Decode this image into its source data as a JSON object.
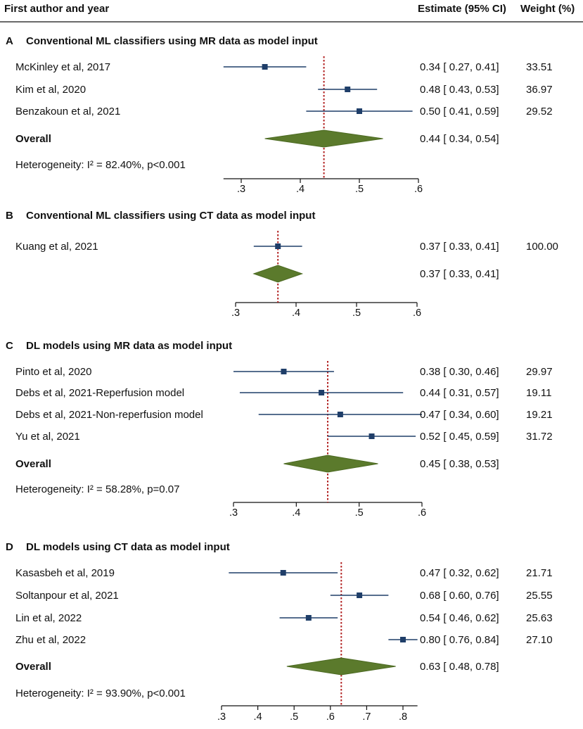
{
  "header": {
    "author_col": "First author and year",
    "estimate_col": "Estimate (95% CI)",
    "weight_col": "Weight (%)"
  },
  "colors": {
    "marker": "#1f3e69",
    "diamond": "#5b7a2c",
    "diamond_stroke": "#4c6a22",
    "null_line": "#b22222",
    "axis": "#111111"
  },
  "chart_data": [
    {
      "type": "forest",
      "letter": "A",
      "title": "Conventional ML classifiers using MR data as model input",
      "xlim": [
        0.27,
        0.6
      ],
      "ticks": [
        0.3,
        0.4,
        0.5,
        0.6
      ],
      "tick_labels": [
        ".3",
        ".4",
        ".5",
        ".6"
      ],
      "pooled_line": 0.44,
      "studies": [
        {
          "label": "McKinley et al, 2017",
          "est": 0.34,
          "lo": 0.27,
          "hi": 0.41,
          "ci_text": "0.34 [ 0.27,  0.41]",
          "weight": "33.51"
        },
        {
          "label": "Kim et al, 2020",
          "est": 0.48,
          "lo": 0.43,
          "hi": 0.53,
          "ci_text": "0.48 [ 0.43,  0.53]",
          "weight": "36.97"
        },
        {
          "label": "Benzakoun et al, 2021",
          "est": 0.5,
          "lo": 0.41,
          "hi": 0.59,
          "ci_text": "0.50 [ 0.41,  0.59]",
          "weight": "29.52"
        }
      ],
      "overall": {
        "label": "Overall",
        "est": 0.44,
        "lo": 0.34,
        "hi": 0.54,
        "ci_text": "0.44 [ 0.34,  0.54]"
      },
      "heterogeneity": "Heterogeneity: I² = 82.40%, p<0.001"
    },
    {
      "type": "forest",
      "letter": "B",
      "title": "Conventional ML classifiers using CT data as model input",
      "xlim": [
        0.3,
        0.6
      ],
      "ticks": [
        0.3,
        0.4,
        0.5,
        0.6
      ],
      "tick_labels": [
        ".3",
        ".4",
        ".5",
        ".6"
      ],
      "pooled_line": 0.37,
      "studies": [
        {
          "label": "Kuang et al, 2021",
          "est": 0.37,
          "lo": 0.33,
          "hi": 0.41,
          "ci_text": "0.37 [ 0.33,  0.41]",
          "weight": "100.00"
        }
      ],
      "overall": {
        "label": "",
        "est": 0.37,
        "lo": 0.33,
        "hi": 0.41,
        "ci_text": "0.37 [ 0.33,  0.41]"
      },
      "heterogeneity": ""
    },
    {
      "type": "forest",
      "letter": "C",
      "title": "DL models using MR data as model input",
      "xlim": [
        0.3,
        0.6
      ],
      "ticks": [
        0.3,
        0.4,
        0.5,
        0.6
      ],
      "tick_labels": [
        ".3",
        ".4",
        ".5",
        ".6"
      ],
      "pooled_line": 0.45,
      "studies": [
        {
          "label": "Pinto et al, 2020",
          "est": 0.38,
          "lo": 0.3,
          "hi": 0.46,
          "ci_text": "0.38 [ 0.30,  0.46]",
          "weight": "29.97"
        },
        {
          "label": "Debs et al, 2021-Reperfusion model",
          "est": 0.44,
          "lo": 0.31,
          "hi": 0.57,
          "ci_text": "0.44 [ 0.31,  0.57]",
          "weight": "19.11"
        },
        {
          "label": "Debs et al, 2021-Non-reperfusion model",
          "est": 0.47,
          "lo": 0.34,
          "hi": 0.6,
          "ci_text": "0.47 [ 0.34,  0.60]",
          "weight": "19.21"
        },
        {
          "label": "Yu et al, 2021",
          "est": 0.52,
          "lo": 0.45,
          "hi": 0.59,
          "ci_text": "0.52 [ 0.45,  0.59]",
          "weight": "31.72"
        }
      ],
      "overall": {
        "label": "Overall",
        "est": 0.45,
        "lo": 0.38,
        "hi": 0.53,
        "ci_text": "0.45 [ 0.38,  0.53]"
      },
      "heterogeneity": "Heterogeneity: I² = 58.28%, p=0.07"
    },
    {
      "type": "forest",
      "letter": "D",
      "title": "DL models using CT data as model input",
      "xlim": [
        0.3,
        0.84
      ],
      "ticks": [
        0.3,
        0.4,
        0.5,
        0.6,
        0.7,
        0.8
      ],
      "tick_labels": [
        ".3",
        ".4",
        ".5",
        ".6",
        ".7",
        ".8"
      ],
      "pooled_line": 0.63,
      "studies": [
        {
          "label": "Kasasbeh et al, 2019",
          "est": 0.47,
          "lo": 0.32,
          "hi": 0.62,
          "ci_text": "0.47 [ 0.32,  0.62]",
          "weight": "21.71"
        },
        {
          "label": "Soltanpour et al, 2021",
          "est": 0.68,
          "lo": 0.6,
          "hi": 0.76,
          "ci_text": "0.68 [ 0.60,  0.76]",
          "weight": "25.55"
        },
        {
          "label": "Lin et al, 2022",
          "est": 0.54,
          "lo": 0.46,
          "hi": 0.62,
          "ci_text": "0.54 [ 0.46,  0.62]",
          "weight": "25.63"
        },
        {
          "label": "Zhu et al, 2022",
          "est": 0.8,
          "lo": 0.76,
          "hi": 0.84,
          "ci_text": "0.80 [ 0.76,  0.84]",
          "weight": "27.10"
        }
      ],
      "overall": {
        "label": "Overall",
        "est": 0.63,
        "lo": 0.48,
        "hi": 0.78,
        "ci_text": "0.63 [ 0.48,  0.78]"
      },
      "heterogeneity": "Heterogeneity: I² = 93.90%, p<0.001"
    }
  ]
}
